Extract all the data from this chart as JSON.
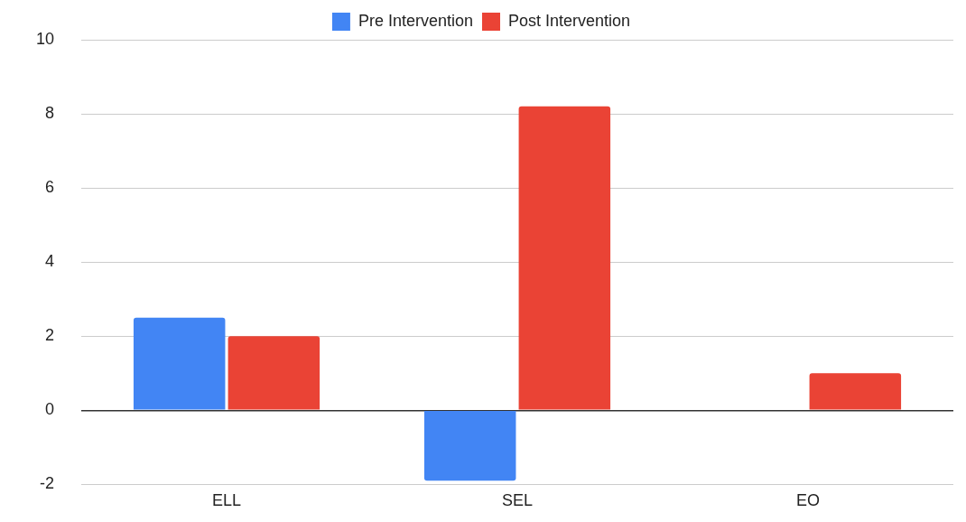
{
  "chart_data": {
    "type": "bar",
    "categories": [
      "ELL",
      "SEL",
      "EO"
    ],
    "series": [
      {
        "name": "Pre Intervention",
        "color": "#4285f4",
        "values": [
          2.5,
          -1.9,
          0
        ]
      },
      {
        "name": "Post Intervention",
        "color": "#ea4335",
        "values": [
          2,
          8.2,
          1
        ]
      }
    ],
    "ylim": [
      -2,
      10
    ],
    "yticks": [
      -2,
      0,
      2,
      4,
      6,
      8,
      10
    ],
    "grid": "y",
    "legend": "top"
  }
}
